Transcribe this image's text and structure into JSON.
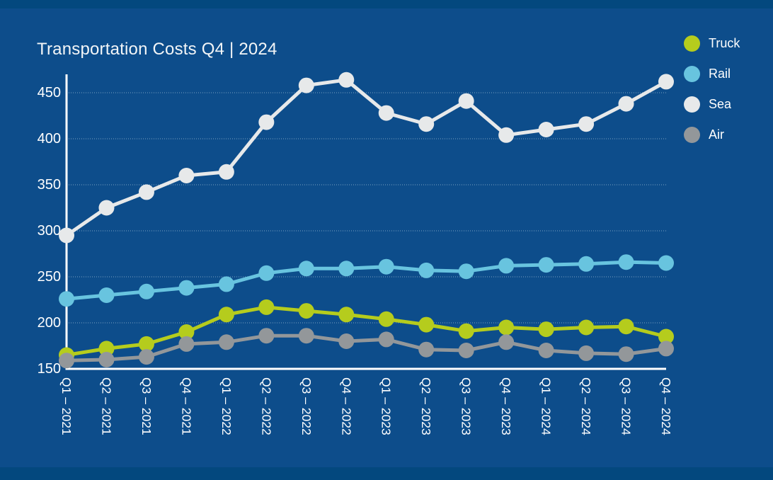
{
  "title": "Transportation Costs Q4 | 2024",
  "colors": {
    "outer_band": "#03487e",
    "paper_background": "#0d4d8b",
    "axis_line": "#ffffff",
    "text": "#ffffff",
    "gridline": "#bed2e2",
    "truck": "#b5cc1d",
    "rail": "#68c4df",
    "sea": "#e7e9ea",
    "air": "#93979a"
  },
  "legend": {
    "position": "top-right",
    "items": [
      "Truck",
      "Rail",
      "Sea",
      "Air"
    ]
  },
  "chart_data": {
    "type": "line",
    "title": "Transportation Costs Q4 | 2024",
    "xlabel": "",
    "ylabel": "",
    "grid": true,
    "legend_position": "top-right",
    "ylim": [
      145,
      472
    ],
    "yticks": [
      150,
      200,
      250,
      300,
      350,
      400,
      450
    ],
    "marker_size": 11,
    "line_width": 5,
    "categories": [
      "Q1 – 2021",
      "Q2 – 2021",
      "Q3 – 2021",
      "Q4 – 2021",
      "Q1 – 2022",
      "Q2 – 2022",
      "Q3 – 2022",
      "Q4 – 2022",
      "Q1 – 2023",
      "Q2 – 2023",
      "Q3 – 2023",
      "Q4 – 2023",
      "Q1 – 2024",
      "Q2 – 2024",
      "Q3 – 2024",
      "Q4 – 2024"
    ],
    "series": [
      {
        "name": "Truck",
        "color": "#b5cc1d",
        "values": [
          165,
          172,
          177,
          190,
          209,
          217,
          213,
          209,
          204,
          198,
          191,
          195,
          193,
          195,
          196,
          185
        ]
      },
      {
        "name": "Rail",
        "color": "#68c4df",
        "values": [
          226,
          230,
          234,
          238,
          242,
          254,
          259,
          259,
          261,
          257,
          256,
          262,
          263,
          264,
          266,
          265
        ]
      },
      {
        "name": "Sea",
        "color": "#e7e9ea",
        "values": [
          295,
          325,
          342,
          360,
          364,
          418,
          458,
          464,
          428,
          416,
          441,
          404,
          410,
          416,
          438,
          462
        ]
      },
      {
        "name": "Air",
        "color": "#93979a",
        "values": [
          159,
          160,
          163,
          177,
          179,
          186,
          186,
          180,
          182,
          171,
          170,
          179,
          170,
          167,
          166,
          172
        ]
      }
    ]
  }
}
